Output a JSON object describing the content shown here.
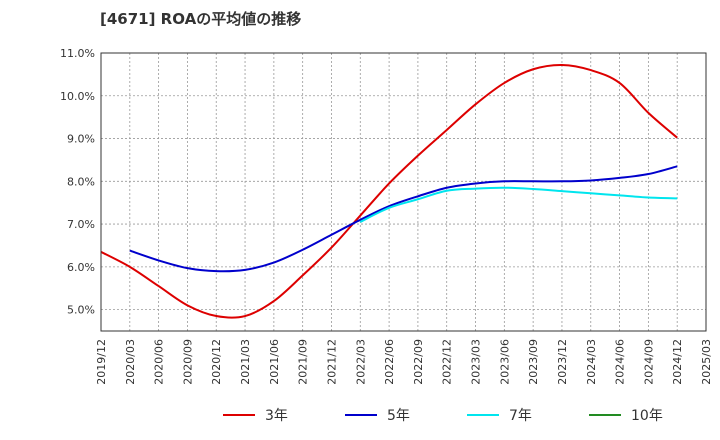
{
  "title": "[4671]  ROAの平均値の推移",
  "chart_data": {
    "type": "line",
    "title": "[4671]  ROAの平均値の推移",
    "x_ticks": [
      "2019/12",
      "2020/03",
      "2020/06",
      "2020/09",
      "2020/12",
      "2021/03",
      "2021/06",
      "2021/09",
      "2021/12",
      "2022/03",
      "2022/06",
      "2022/09",
      "2022/12",
      "2023/03",
      "2023/06",
      "2023/09",
      "2023/12",
      "2024/03",
      "2024/06",
      "2024/09",
      "2024/12",
      "2025/03"
    ],
    "y_ticks": [
      "5.0%",
      "6.0%",
      "7.0%",
      "8.0%",
      "9.0%",
      "10.0%",
      "11.0%"
    ],
    "ylim": [
      4.5,
      11.0
    ],
    "grid": true,
    "legend_position": "bottom",
    "series": [
      {
        "name": "3年",
        "color": "#dd0000",
        "x": [
          "2019/12",
          "2020/03",
          "2020/06",
          "2020/09",
          "2020/12",
          "2021/03",
          "2021/06",
          "2021/09",
          "2021/12",
          "2022/03",
          "2022/06",
          "2022/09",
          "2022/12",
          "2023/03",
          "2023/06",
          "2023/09",
          "2023/12",
          "2024/03",
          "2024/06",
          "2024/09",
          "2024/12"
        ],
        "values": [
          6.35,
          6.0,
          5.55,
          5.1,
          4.85,
          4.85,
          5.2,
          5.8,
          6.45,
          7.2,
          7.95,
          8.6,
          9.2,
          9.8,
          10.3,
          10.62,
          10.72,
          10.6,
          10.3,
          9.6,
          9.02
        ]
      },
      {
        "name": "5年",
        "color": "#0000cc",
        "x": [
          "2020/03",
          "2020/06",
          "2020/09",
          "2020/12",
          "2021/03",
          "2021/06",
          "2021/09",
          "2021/12",
          "2022/03",
          "2022/06",
          "2022/09",
          "2022/12",
          "2023/03",
          "2023/06",
          "2023/09",
          "2023/12",
          "2024/03",
          "2024/06",
          "2024/09",
          "2024/12"
        ],
        "values": [
          6.38,
          6.15,
          5.97,
          5.9,
          5.93,
          6.1,
          6.4,
          6.75,
          7.1,
          7.42,
          7.65,
          7.85,
          7.95,
          8.0,
          8.0,
          8.0,
          8.02,
          8.08,
          8.17,
          8.35
        ]
      },
      {
        "name": "7年",
        "color": "#00e5ee",
        "x": [
          "2022/03",
          "2022/06",
          "2022/09",
          "2022/12",
          "2023/03",
          "2023/06",
          "2023/09",
          "2023/12",
          "2024/03",
          "2024/06",
          "2024/09",
          "2024/12"
        ],
        "values": [
          7.05,
          7.38,
          7.58,
          7.78,
          7.83,
          7.85,
          7.82,
          7.77,
          7.72,
          7.67,
          7.62,
          7.6
        ]
      },
      {
        "name": "10年",
        "color": "#228b22",
        "x": [],
        "values": []
      }
    ]
  }
}
